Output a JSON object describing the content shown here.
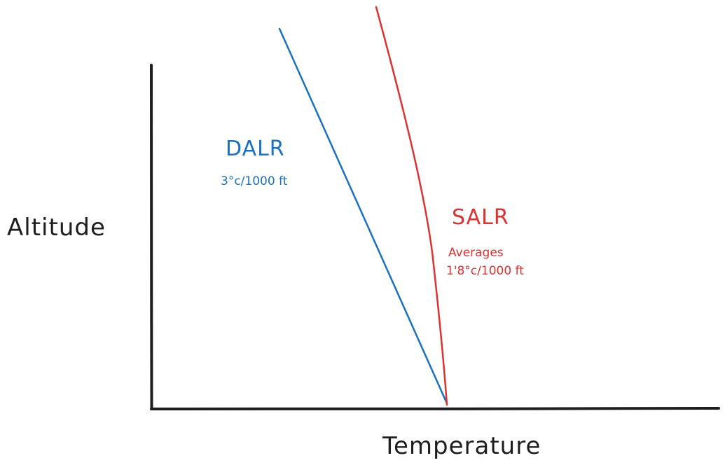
{
  "diagram": {
    "axes": {
      "y_label": "Altitude",
      "x_label": "Temperature",
      "color": "#1e1e1e"
    },
    "series": [
      {
        "id": "dalr",
        "name": "DALR",
        "note_lines": [
          "3°c/1000 ft"
        ],
        "color": "#1971c2"
      },
      {
        "id": "salr",
        "name": "SALR",
        "note_lines": [
          "Averages",
          "1'8°c/1000 ft"
        ],
        "color": "#e03131"
      }
    ]
  }
}
